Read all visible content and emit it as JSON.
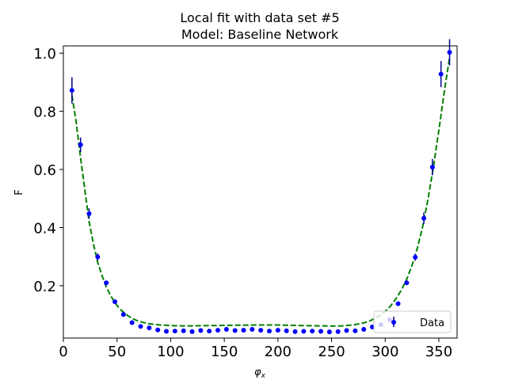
{
  "chart_data": {
    "type": "scatter",
    "title": "Local fit with data set #5",
    "subtitle": "Model: Baseline Network",
    "xlabel": "φ",
    "xlabel_sub": "x",
    "ylabel": "F",
    "xlim": [
      0,
      367
    ],
    "ylim": [
      0.02,
      1.025
    ],
    "xticks": [
      0,
      50,
      100,
      150,
      200,
      250,
      300,
      350
    ],
    "yticks": [
      0.2,
      0.4,
      0.6,
      0.8,
      1.0
    ],
    "ytick_labels": [
      "0.2",
      "0.4",
      "0.6",
      "0.8",
      "1.0"
    ],
    "grid": false,
    "legend": {
      "position": "lower-right",
      "entries": [
        "Data"
      ]
    },
    "colors": {
      "data": "#0000ff",
      "errorbar": "#00008b",
      "fit": "#008000"
    },
    "series": [
      {
        "name": "Data",
        "kind": "errorbar",
        "x": [
          8,
          16,
          24,
          32,
          40,
          48,
          56,
          64,
          72,
          80,
          88,
          96,
          104,
          112,
          120,
          128,
          136,
          144,
          152,
          160,
          168,
          176,
          184,
          192,
          200,
          208,
          216,
          224,
          232,
          240,
          248,
          256,
          264,
          272,
          280,
          288,
          296,
          304,
          312,
          320,
          328,
          336,
          344,
          352,
          360
        ],
        "y": [
          0.872,
          0.685,
          0.448,
          0.299,
          0.21,
          0.145,
          0.101,
          0.073,
          0.06,
          0.055,
          0.048,
          0.043,
          0.044,
          0.045,
          0.042,
          0.046,
          0.044,
          0.047,
          0.05,
          0.046,
          0.047,
          0.05,
          0.047,
          0.044,
          0.047,
          0.045,
          0.042,
          0.043,
          0.044,
          0.043,
          0.041,
          0.042,
          0.046,
          0.045,
          0.05,
          0.058,
          0.066,
          0.083,
          0.138,
          0.21,
          0.298,
          0.432,
          0.608,
          0.928,
          1.003
        ],
        "yerr": [
          0.045,
          0.025,
          0.018,
          0.012,
          0.006,
          0.005,
          0.003,
          0.002,
          0.002,
          0.002,
          0.002,
          0.002,
          0.002,
          0.002,
          0.002,
          0.002,
          0.002,
          0.002,
          0.002,
          0.002,
          0.002,
          0.002,
          0.002,
          0.002,
          0.002,
          0.002,
          0.002,
          0.002,
          0.002,
          0.002,
          0.002,
          0.002,
          0.002,
          0.002,
          0.002,
          0.002,
          0.003,
          0.004,
          0.006,
          0.008,
          0.012,
          0.02,
          0.028,
          0.045,
          0.045
        ]
      },
      {
        "name": "",
        "kind": "fit-line",
        "x": [
          8,
          12,
          16,
          20,
          24,
          28,
          32,
          36,
          40,
          45,
          50,
          55,
          60,
          65,
          70,
          75,
          80,
          90,
          100,
          110,
          120,
          140,
          160,
          180,
          200,
          220,
          240,
          250,
          260,
          270,
          280,
          285,
          290,
          295,
          300,
          305,
          310,
          315,
          320,
          325,
          330,
          335,
          340,
          345,
          350,
          355,
          360
        ],
        "y": [
          0.855,
          0.76,
          0.64,
          0.53,
          0.42,
          0.345,
          0.28,
          0.235,
          0.195,
          0.16,
          0.132,
          0.112,
          0.097,
          0.086,
          0.078,
          0.073,
          0.069,
          0.065,
          0.063,
          0.062,
          0.062,
          0.063,
          0.064,
          0.065,
          0.065,
          0.063,
          0.062,
          0.061,
          0.062,
          0.065,
          0.072,
          0.078,
          0.087,
          0.098,
          0.112,
          0.13,
          0.155,
          0.185,
          0.222,
          0.27,
          0.33,
          0.405,
          0.5,
          0.61,
          0.735,
          0.865,
          0.985
        ]
      }
    ]
  }
}
